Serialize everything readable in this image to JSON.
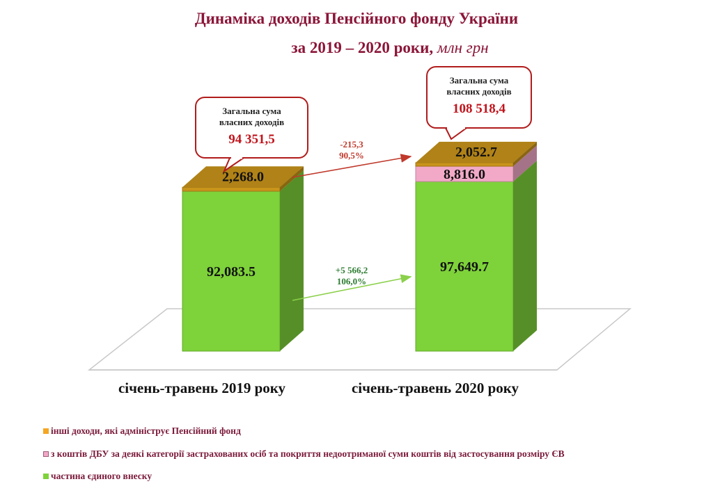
{
  "title": {
    "line1": "Динаміка доходів Пенсійного фонду України",
    "line2": "за 2019 – 2020 роки,",
    "unit": "млн грн"
  },
  "chart_data": {
    "type": "bar",
    "stacked": true,
    "categories": [
      "січень-травень 2019 року",
      "січень-травень 2020 року"
    ],
    "series": [
      {
        "name": "частина єдиного внеску",
        "values": [
          92083.5,
          97649.7
        ],
        "labels": [
          "92,083.5",
          "97,649.7"
        ],
        "color": "#7ed23a"
      },
      {
        "name": "з коштів ДБУ за деякі категорії застрахованих осіб та покриття недоотриманої суми коштів від застосування розміру ЄВ",
        "values": [
          0,
          8816.0
        ],
        "labels": [
          "",
          "8,816.0"
        ],
        "color": "#f2a9c7"
      },
      {
        "name": "інші доходи, які адмініструє Пенсійний фонд",
        "values": [
          2268.0,
          2052.7
        ],
        "labels": [
          "2,268.0",
          "2,052.7"
        ],
        "color": "#c8941a"
      }
    ],
    "callouts": [
      {
        "heading": "Загальна сума власних доходів",
        "value": "94 351,5"
      },
      {
        "heading": "Загальна сума власних доходів",
        "value": "108 518,4"
      }
    ],
    "changes": [
      {
        "line1": "-215,3",
        "line2": "90,5%",
        "color": "#c0392b"
      },
      {
        "line1": "+5 566,2",
        "line2": "106,0%",
        "color": "#2e7d32"
      }
    ],
    "legend_position": "bottom-left"
  }
}
